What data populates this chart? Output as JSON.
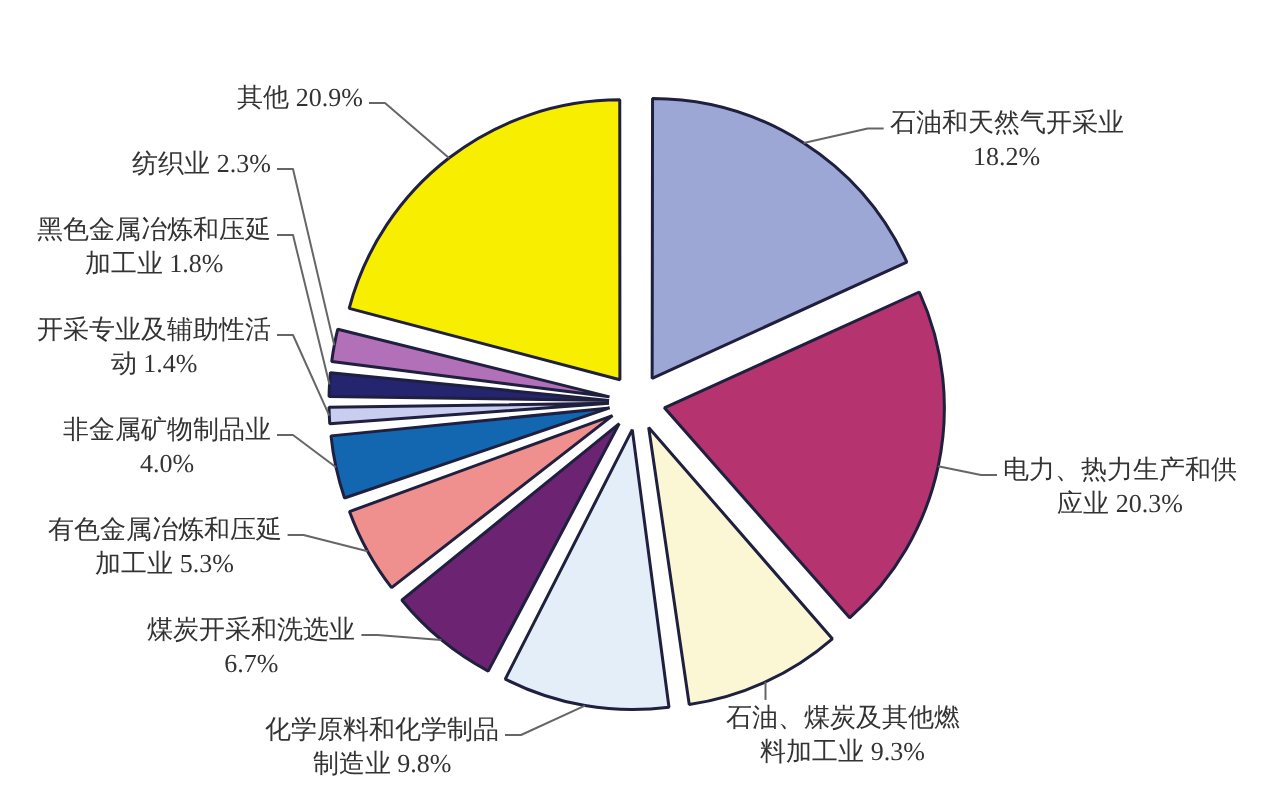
{
  "chart_data": {
    "type": "pie",
    "categories": [
      "石油和天然气开采业",
      "电力、热力生产和供应业",
      "石油、煤炭及其他燃料加工业",
      "化学原料和化学制品制造业",
      "煤炭开采和洗选业",
      "有色金属冶炼和压延加工业",
      "非金属矿物制品业",
      "开采专业及辅助性活动",
      "黑色金属冶炼和压延加工业",
      "纺织业",
      "其他"
    ],
    "values": [
      18.2,
      20.3,
      9.3,
      9.8,
      6.7,
      5.3,
      4.0,
      1.4,
      1.8,
      2.3,
      20.9
    ],
    "value_labels": [
      "18.2%",
      "20.3%",
      "9.3%",
      "9.8%",
      "6.7%",
      "5.3%",
      "4.0%",
      "1.4%",
      "1.8%",
      "2.3%",
      "20.9%"
    ],
    "colors": [
      "#9da7d6",
      "#b5336f",
      "#fbf7d5",
      "#e4eef9",
      "#6b2372",
      "#ef8f8e",
      "#1366b0",
      "#c9cdf0",
      "#25246e",
      "#b170b8",
      "#f7ee00"
    ]
  }
}
